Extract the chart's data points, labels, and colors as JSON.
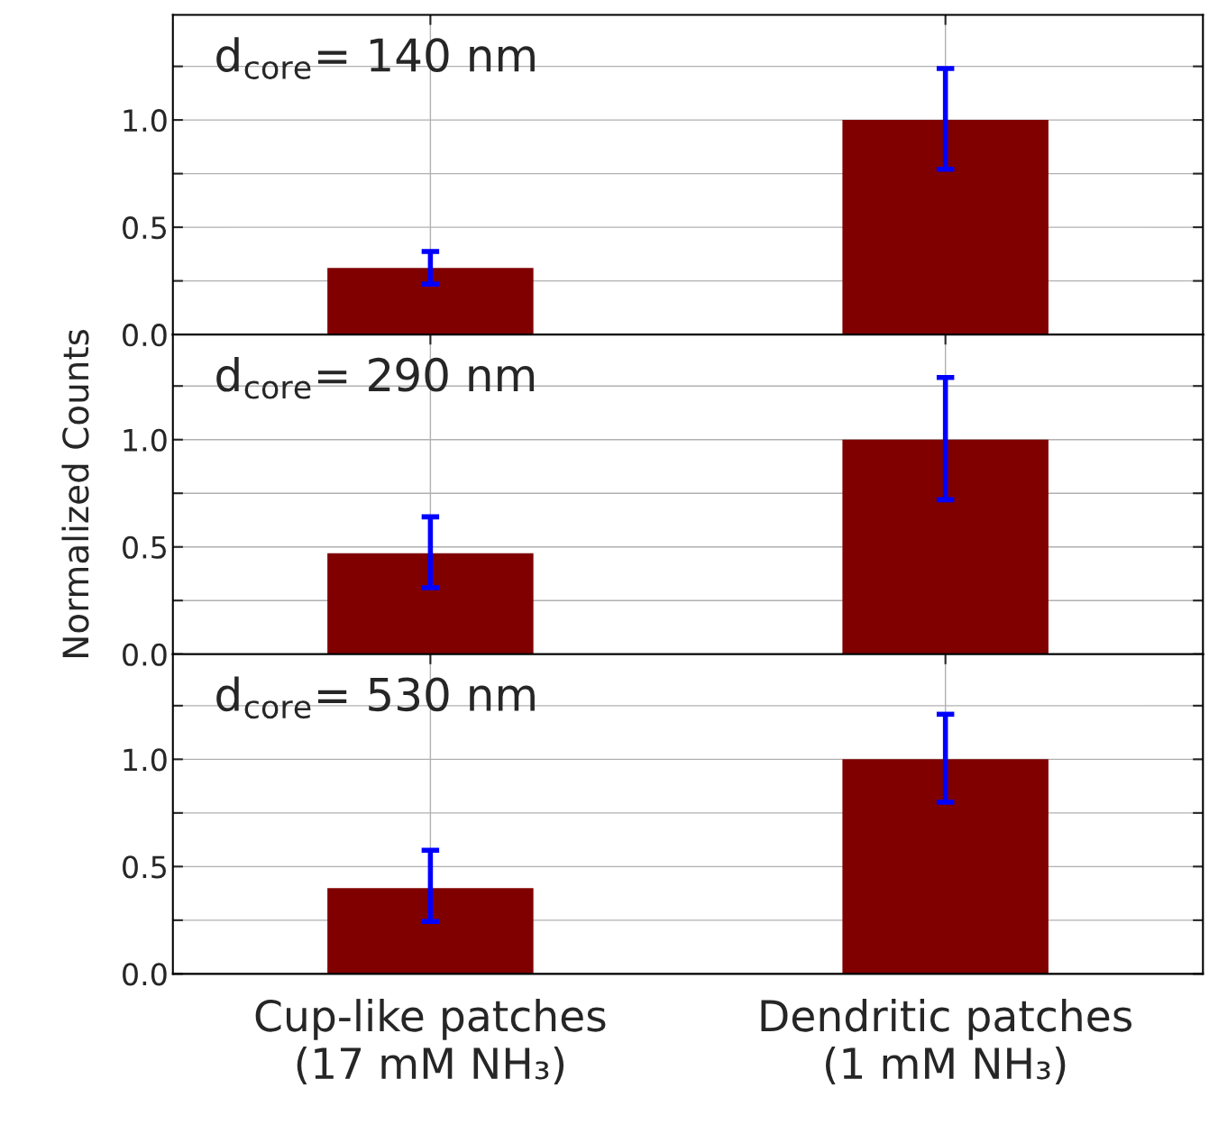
{
  "chart_data": [
    {
      "type": "bar",
      "categories": [
        null,
        null
      ],
      "values": [
        0.31,
        1.0
      ],
      "errors": [
        [
          0.235,
          0.387
        ],
        [
          0.77,
          1.24
        ]
      ],
      "color": "#800000",
      "ylim": [
        0,
        1.49
      ],
      "yticks": [
        {
          "value": 0,
          "label": "0.0"
        },
        {
          "value": 0.25,
          "label": null
        },
        {
          "value": 0.5,
          "label": "0.5"
        },
        {
          "value": 0.75,
          "label": null
        },
        {
          "value": 1,
          "label": "1.0"
        },
        {
          "value": 1.25,
          "label": null
        }
      ],
      "grid": true,
      "tick_labels": "y",
      "annotations": [
        "d$_{core}$= 140 nm"
      ]
    },
    {
      "type": "bar",
      "categories": [
        null,
        null
      ],
      "values": [
        0.47,
        1.0
      ],
      "errors": [
        [
          0.31,
          0.64
        ],
        [
          0.72,
          1.29
        ]
      ],
      "color": "#800000",
      "ylim": [
        0,
        1.49
      ],
      "yticks": [
        {
          "value": 0,
          "label": "0.0"
        },
        {
          "value": 0.25,
          "label": null
        },
        {
          "value": 0.5,
          "label": "0.5"
        },
        {
          "value": 0.75,
          "label": null
        },
        {
          "value": 1,
          "label": "1.0"
        },
        {
          "value": 1.25,
          "label": null
        }
      ],
      "grid": true,
      "tick_labels": "y",
      "ylabel": "Normalized Counts",
      "annotations": [
        "d$_{core}$= 290 nm"
      ]
    },
    {
      "type": "bar",
      "categories": [
        "Cup-like patches\n(17 mM NH₃)",
        "Dendritic patches\n(1 mM NH₃)"
      ],
      "values": [
        0.4,
        1.0
      ],
      "errors": [
        [
          0.244,
          0.576
        ],
        [
          0.8,
          1.21
        ]
      ],
      "color": "#800000",
      "ylim": [
        0,
        1.49
      ],
      "yticks": [
        {
          "value": 0,
          "label": "0.0"
        },
        {
          "value": 0.25,
          "label": null
        },
        {
          "value": 0.5,
          "label": "0.5"
        },
        {
          "value": 0.75,
          "label": null
        },
        {
          "value": 1,
          "label": "1.0"
        },
        {
          "value": 1.25,
          "label": null
        }
      ],
      "grid": true,
      "annotations": [
        "d$_{core}$= 530 nm"
      ]
    }
  ]
}
